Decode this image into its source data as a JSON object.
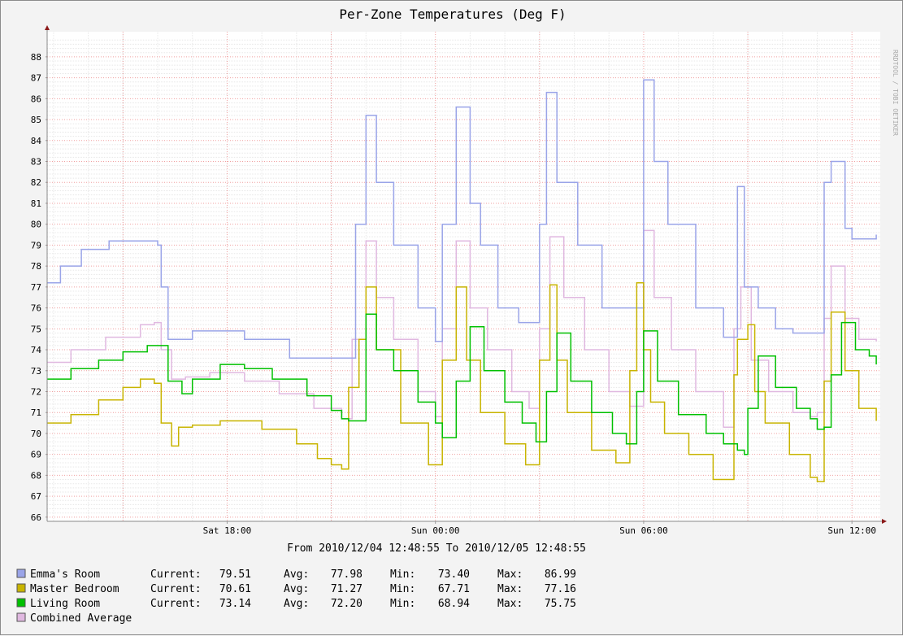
{
  "chart_data": {
    "type": "line",
    "title": "Per-Zone Temperatures (Deg F)",
    "subtitle": "From 2010/12/04 12:48:55 To 2010/12/05 12:48:55",
    "watermark": "RRDTOOL / TOBI OETIKER",
    "x_start": "2010-12-04 12:48:55",
    "x_end": "2010-12-05 12:48:55",
    "x_range_hours": [
      12.815,
      36.815
    ],
    "xticks": [
      {
        "label": "Sat 18:00",
        "hour": 18
      },
      {
        "label": "Sun 00:00",
        "hour": 24
      },
      {
        "label": "Sun 06:00",
        "hour": 30
      },
      {
        "label": "Sun 12:00",
        "hour": 36
      }
    ],
    "ylim": [
      65.8,
      89.2
    ],
    "yticks": [
      66,
      67,
      68,
      69,
      70,
      71,
      72,
      73,
      74,
      75,
      76,
      77,
      78,
      79,
      80,
      81,
      82,
      83,
      84,
      85,
      86,
      87,
      88
    ],
    "grid": true,
    "series": [
      {
        "name": "Emma's Room",
        "color": "#9aa4e8",
        "x": [
          12.815,
          13.2,
          13.8,
          14.6,
          15.5,
          16.0,
          16.1,
          16.3,
          17.0,
          18.5,
          19.8,
          21.2,
          21.7,
          22.0,
          22.3,
          22.8,
          23.5,
          24.0,
          24.2,
          24.6,
          25.0,
          25.3,
          25.8,
          26.4,
          27.0,
          27.2,
          27.5,
          28.1,
          28.8,
          29.5,
          30.0,
          30.3,
          30.7,
          31.5,
          32.3,
          32.7,
          32.9,
          33.3,
          33.8,
          34.3,
          34.9,
          35.2,
          35.4,
          35.8,
          36.0,
          36.3,
          36.7
        ],
        "y": [
          77.2,
          78.0,
          78.8,
          79.2,
          79.2,
          79.0,
          77.0,
          74.5,
          74.9,
          74.5,
          73.6,
          73.6,
          80.0,
          85.2,
          82.0,
          79.0,
          76.0,
          74.4,
          80.0,
          85.6,
          81.0,
          79.0,
          76.0,
          75.3,
          80.0,
          86.3,
          82.0,
          79.0,
          76.0,
          76.0,
          86.9,
          83.0,
          80.0,
          76.0,
          74.6,
          81.8,
          77.0,
          76.0,
          75.0,
          74.8,
          74.8,
          82.0,
          83.0,
          79.8,
          79.3,
          79.3,
          79.5
        ]
      },
      {
        "name": "Master Bedroom",
        "color": "#c8b400",
        "x": [
          12.815,
          13.5,
          14.3,
          15.0,
          15.5,
          15.9,
          16.1,
          16.4,
          16.6,
          17.0,
          17.8,
          19.0,
          20.0,
          20.6,
          21.0,
          21.3,
          21.5,
          21.8,
          22.0,
          22.3,
          23.0,
          23.8,
          24.0,
          24.2,
          24.6,
          24.9,
          25.3,
          26.0,
          26.6,
          27.0,
          27.3,
          27.5,
          27.8,
          28.5,
          29.2,
          29.6,
          29.8,
          30.0,
          30.2,
          30.6,
          31.3,
          32.0,
          32.6,
          32.7,
          33.0,
          33.2,
          33.5,
          34.2,
          34.8,
          35.0,
          35.2,
          35.4,
          35.8,
          36.2,
          36.7
        ],
        "y": [
          70.5,
          70.9,
          71.6,
          72.2,
          72.6,
          72.4,
          70.5,
          69.4,
          70.3,
          70.4,
          70.6,
          70.2,
          69.5,
          68.8,
          68.5,
          68.3,
          72.2,
          74.5,
          77.0,
          74.0,
          70.5,
          68.5,
          68.5,
          73.5,
          77.0,
          73.5,
          71.0,
          69.5,
          68.5,
          73.5,
          77.1,
          73.5,
          71.0,
          69.2,
          68.6,
          73.0,
          77.2,
          74.0,
          71.5,
          70.0,
          69.0,
          67.8,
          72.8,
          74.5,
          75.2,
          72.0,
          70.5,
          69.0,
          67.9,
          67.7,
          72.5,
          75.8,
          73.0,
          71.2,
          70.6
        ]
      },
      {
        "name": "Living Room",
        "color": "#00c000",
        "x": [
          12.815,
          13.5,
          14.3,
          15.0,
          15.7,
          16.0,
          16.3,
          16.7,
          17.0,
          17.8,
          18.5,
          19.3,
          20.3,
          21.0,
          21.3,
          21.5,
          22.0,
          22.3,
          22.8,
          23.5,
          24.0,
          24.2,
          24.6,
          25.0,
          25.4,
          26.0,
          26.5,
          26.9,
          27.2,
          27.5,
          27.9,
          28.5,
          29.1,
          29.5,
          29.8,
          30.0,
          30.4,
          31.0,
          31.8,
          32.3,
          32.7,
          32.9,
          33.0,
          33.3,
          33.8,
          34.4,
          34.8,
          35.0,
          35.2,
          35.4,
          35.7,
          36.1,
          36.5,
          36.7
        ],
        "y": [
          72.6,
          73.1,
          73.5,
          73.9,
          74.2,
          74.2,
          72.5,
          71.9,
          72.6,
          73.3,
          73.1,
          72.6,
          71.8,
          71.1,
          70.7,
          70.6,
          75.7,
          74.0,
          73.0,
          71.5,
          70.5,
          69.8,
          72.5,
          75.1,
          73.0,
          71.5,
          70.5,
          69.6,
          72.0,
          74.8,
          72.5,
          71.0,
          70.0,
          69.5,
          72.0,
          74.9,
          72.5,
          70.9,
          70.0,
          69.5,
          69.2,
          69.0,
          71.2,
          73.7,
          72.2,
          71.2,
          70.7,
          70.2,
          70.3,
          72.8,
          75.3,
          74.0,
          73.7,
          73.3
        ]
      },
      {
        "name": "Combined Average",
        "color": "#e0b8e0",
        "x": [
          12.815,
          13.5,
          14.5,
          15.5,
          15.9,
          16.1,
          16.4,
          16.8,
          17.5,
          18.5,
          19.5,
          20.5,
          21.3,
          21.6,
          22.0,
          22.3,
          22.8,
          23.5,
          24.0,
          24.2,
          24.6,
          25.0,
          25.5,
          26.2,
          26.7,
          27.0,
          27.3,
          27.7,
          28.3,
          29.0,
          29.6,
          30.0,
          30.3,
          30.8,
          31.5,
          32.3,
          32.6,
          32.8,
          33.1,
          33.6,
          34.3,
          34.8,
          35.0,
          35.2,
          35.4,
          35.8,
          36.2,
          36.7
        ],
        "y": [
          73.4,
          74.0,
          74.6,
          75.2,
          75.3,
          74.0,
          72.6,
          72.7,
          72.9,
          72.5,
          71.9,
          71.2,
          70.7,
          74.5,
          79.2,
          76.5,
          74.5,
          72.0,
          70.8,
          75.0,
          79.2,
          76.0,
          74.0,
          72.0,
          71.2,
          75.0,
          79.4,
          76.5,
          74.0,
          72.0,
          71.3,
          79.7,
          76.5,
          74.0,
          72.0,
          70.3,
          75.0,
          77.0,
          73.5,
          72.0,
          71.0,
          70.8,
          71.0,
          75.5,
          78.0,
          75.5,
          74.5,
          74.4
        ]
      }
    ],
    "legend": [
      {
        "name": "Emma's Room",
        "color": "#9aa4e8",
        "current_label": "Current:",
        "current": "79.51",
        "avg_label": "Avg:",
        "avg": "77.98",
        "min_label": "Min:",
        "min": "73.40",
        "max_label": "Max:",
        "max": "86.99"
      },
      {
        "name": "Master Bedroom",
        "color": "#c8b400",
        "current_label": "Current:",
        "current": "70.61",
        "avg_label": "Avg:",
        "avg": "71.27",
        "min_label": "Min:",
        "min": "67.71",
        "max_label": "Max:",
        "max": "77.16"
      },
      {
        "name": "Living Room",
        "color": "#00c000",
        "current_label": "Current:",
        "current": "73.14",
        "avg_label": "Avg:",
        "avg": "72.20",
        "min_label": "Min:",
        "min": "68.94",
        "max_label": "Max:",
        "max": "75.75"
      },
      {
        "name": "Combined Average",
        "color": "#e0b8e0"
      }
    ]
  }
}
